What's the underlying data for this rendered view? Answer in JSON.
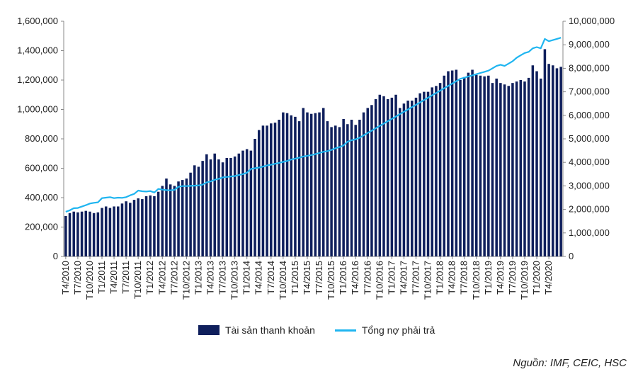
{
  "chart_data": {
    "type": "bar+line",
    "x_axis_labels": [
      "T4/2010",
      "T7/2010",
      "T10/2010",
      "T1/2011",
      "T4/2011",
      "T7/2011",
      "T10/2011",
      "T1/2012",
      "T4/2012",
      "T7/2012",
      "T10/2012",
      "T1/2013",
      "T4/2013",
      "T7/2013",
      "T10/2013",
      "T1/2014",
      "T4/2014",
      "T7/2014",
      "T10/2014",
      "T1/2015",
      "T4/2015",
      "T7/2015",
      "T10/2015",
      "T1/2016",
      "T4/2016",
      "T7/2016",
      "T10/2016",
      "T1/2017",
      "T4/2017",
      "T7/2017",
      "T10/2017",
      "T1/2018",
      "T4/2018",
      "T7/2018",
      "T10/2018",
      "T1/2019",
      "T4/2019",
      "T7/2019",
      "T10/2019",
      "T1/2020",
      "T4/2020"
    ],
    "left_axis": {
      "min": 0,
      "max": 1600000,
      "ticks": [
        "0",
        "200,000",
        "400,000",
        "600,000",
        "800,000",
        "1,000,000",
        "1,200,000",
        "1,400,000",
        "1,600,000"
      ]
    },
    "right_axis": {
      "min": 0,
      "max": 10000000,
      "ticks": [
        "0",
        "1,000,000",
        "2,000,000",
        "3,000,000",
        "4,000,000",
        "5,000,000",
        "6,000,000",
        "7,000,000",
        "8,000,000",
        "9,000,000",
        "10,000,000"
      ]
    },
    "series": [
      {
        "name": "Tài sản thanh khoản",
        "type": "bar",
        "axis": "left",
        "color": "#0f1f5c",
        "values": [
          275000,
          295000,
          305000,
          300000,
          305000,
          310000,
          305000,
          295000,
          300000,
          330000,
          340000,
          330000,
          340000,
          340000,
          360000,
          375000,
          365000,
          385000,
          395000,
          390000,
          410000,
          415000,
          410000,
          440000,
          480000,
          530000,
          490000,
          480000,
          510000,
          520000,
          530000,
          570000,
          620000,
          610000,
          650000,
          695000,
          660000,
          700000,
          660000,
          640000,
          670000,
          670000,
          680000,
          700000,
          720000,
          730000,
          720000,
          800000,
          860000,
          890000,
          890000,
          905000,
          910000,
          930000,
          980000,
          975000,
          960000,
          950000,
          920000,
          1010000,
          980000,
          970000,
          975000,
          980000,
          1010000,
          920000,
          880000,
          890000,
          880000,
          935000,
          900000,
          930000,
          895000,
          930000,
          980000,
          1010000,
          1030000,
          1070000,
          1100000,
          1090000,
          1070000,
          1080000,
          1100000,
          1010000,
          1040000,
          1060000,
          1060000,
          1080000,
          1110000,
          1120000,
          1120000,
          1150000,
          1160000,
          1180000,
          1230000,
          1260000,
          1265000,
          1270000,
          1200000,
          1220000,
          1250000,
          1270000,
          1235000,
          1230000,
          1225000,
          1230000,
          1180000,
          1210000,
          1180000,
          1170000,
          1160000,
          1180000,
          1190000,
          1200000,
          1190000,
          1215000,
          1300000,
          1260000,
          1210000,
          1410000,
          1310000,
          1300000,
          1280000,
          1290000
        ]
      },
      {
        "name": "Tổng nợ phải trả",
        "type": "line",
        "axis": "right",
        "color": "#1fb5f0",
        "values": [
          1900000,
          1960000,
          2050000,
          2060000,
          2120000,
          2180000,
          2250000,
          2280000,
          2300000,
          2480000,
          2500000,
          2520000,
          2480000,
          2500000,
          2490000,
          2520000,
          2600000,
          2660000,
          2800000,
          2770000,
          2760000,
          2780000,
          2720000,
          2870000,
          2840000,
          2820000,
          2810000,
          2830000,
          2960000,
          2990000,
          2990000,
          3000000,
          3010000,
          3020000,
          3050000,
          3150000,
          3190000,
          3260000,
          3300000,
          3360000,
          3380000,
          3400000,
          3420000,
          3460000,
          3500000,
          3560000,
          3720000,
          3750000,
          3780000,
          3820000,
          3870000,
          3900000,
          3940000,
          3980000,
          4020000,
          4060000,
          4120000,
          4160000,
          4200000,
          4250000,
          4280000,
          4310000,
          4350000,
          4400000,
          4450000,
          4480000,
          4530000,
          4600000,
          4650000,
          4720000,
          4880000,
          4940000,
          4980000,
          5050000,
          5150000,
          5250000,
          5350000,
          5450000,
          5550000,
          5650000,
          5750000,
          5850000,
          5950000,
          6050000,
          6150000,
          6250000,
          6350000,
          6450000,
          6550000,
          6650000,
          6750000,
          6850000,
          6950000,
          7050000,
          7150000,
          7250000,
          7350000,
          7450000,
          7550000,
          7600000,
          7650000,
          7700000,
          7750000,
          7800000,
          7850000,
          7900000,
          8000000,
          8100000,
          8150000,
          8100000,
          8200000,
          8300000,
          8450000,
          8550000,
          8650000,
          8700000,
          8850000,
          8900000,
          8850000,
          9250000,
          9150000,
          9200000,
          9250000,
          9300000
        ]
      }
    ]
  },
  "legend": {
    "bar_label": "Tài sản thanh khoản",
    "line_label": "Tổng nợ phải trả"
  },
  "source_note": "Nguồn: IMF, CEIC, HSC"
}
